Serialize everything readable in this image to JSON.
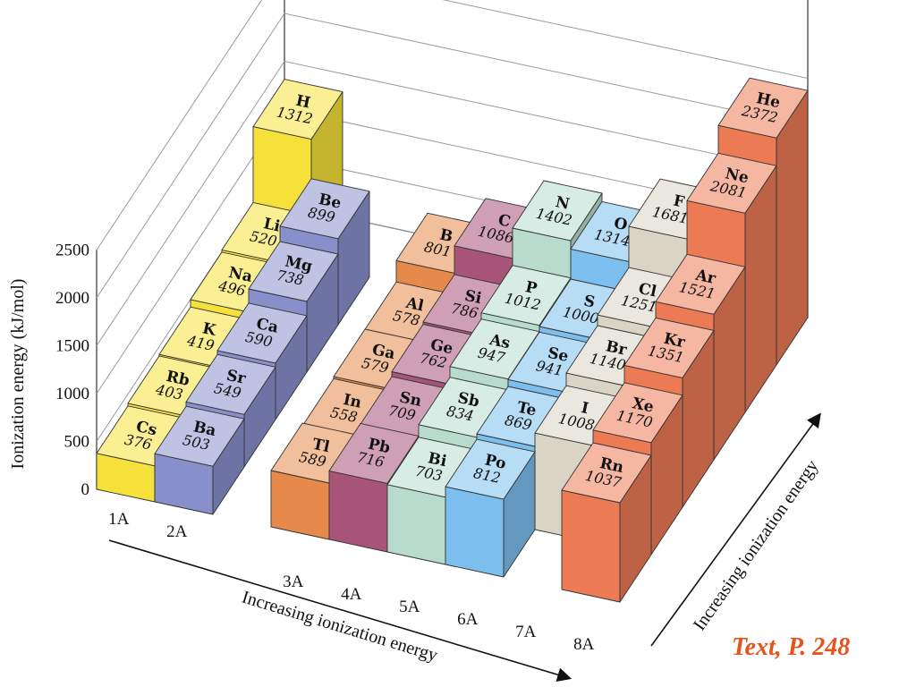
{
  "chart_data": {
    "type": "bar",
    "bar_style": "3d",
    "ylabel": "Ionization energy (kJ/mol)",
    "ylim": [
      0,
      2500
    ],
    "yticks": [
      0,
      500,
      1000,
      1500,
      2000,
      2500
    ],
    "xlabel": "Increasing ionization energy",
    "zlabel": "Increasing ionization energy",
    "groups": [
      {
        "label": "1A",
        "color": "#f5e13a",
        "elements": [
          {
            "symbol": "H",
            "value": 1312
          },
          {
            "symbol": "Li",
            "value": 520
          },
          {
            "symbol": "Na",
            "value": 496
          },
          {
            "symbol": "K",
            "value": 419
          },
          {
            "symbol": "Rb",
            "value": 403
          },
          {
            "symbol": "Cs",
            "value": 376
          }
        ]
      },
      {
        "label": "2A",
        "color": "#8890cc",
        "elements": [
          {
            "symbol": "Be",
            "value": 899
          },
          {
            "symbol": "Mg",
            "value": 738
          },
          {
            "symbol": "Ca",
            "value": 590
          },
          {
            "symbol": "Sr",
            "value": 549
          },
          {
            "symbol": "Ba",
            "value": 503
          }
        ]
      },
      {
        "label": "3A",
        "color": "#e58a4a",
        "elements": [
          {
            "symbol": "B",
            "value": 801
          },
          {
            "symbol": "Al",
            "value": 578
          },
          {
            "symbol": "Ga",
            "value": 579
          },
          {
            "symbol": "In",
            "value": 558
          },
          {
            "symbol": "Tl",
            "value": 589
          }
        ]
      },
      {
        "label": "4A",
        "color": "#a85378",
        "elements": [
          {
            "symbol": "C",
            "value": 1086
          },
          {
            "symbol": "Si",
            "value": 786
          },
          {
            "symbol": "Ge",
            "value": 762
          },
          {
            "symbol": "Sn",
            "value": 709
          },
          {
            "symbol": "Pb",
            "value": 716
          }
        ]
      },
      {
        "label": "5A",
        "color": "#b7dccd",
        "elements": [
          {
            "symbol": "N",
            "value": 1402
          },
          {
            "symbol": "P",
            "value": 1012
          },
          {
            "symbol": "As",
            "value": 947
          },
          {
            "symbol": "Sb",
            "value": 834
          },
          {
            "symbol": "Bi",
            "value": 703
          }
        ]
      },
      {
        "label": "6A",
        "color": "#7cbfee",
        "elements": [
          {
            "symbol": "O",
            "value": 1314
          },
          {
            "symbol": "S",
            "value": 1000
          },
          {
            "symbol": "Se",
            "value": 941
          },
          {
            "symbol": "Te",
            "value": 869
          },
          {
            "symbol": "Po",
            "value": 812
          }
        ]
      },
      {
        "label": "7A",
        "color": "#d9d4c4",
        "elements": [
          {
            "symbol": "F",
            "value": 1681
          },
          {
            "symbol": "Cl",
            "value": 1251
          },
          {
            "symbol": "Br",
            "value": 1140
          },
          {
            "symbol": "I",
            "value": 1008
          }
        ]
      },
      {
        "label": "8A",
        "color": "#ec7a55",
        "elements": [
          {
            "symbol": "He",
            "value": 2372
          },
          {
            "symbol": "Ne",
            "value": 2081
          },
          {
            "symbol": "Ar",
            "value": 1521
          },
          {
            "symbol": "Kr",
            "value": 1351
          },
          {
            "symbol": "Xe",
            "value": 1170
          },
          {
            "symbol": "Rn",
            "value": 1037
          }
        ]
      }
    ]
  },
  "credit": {
    "text": "Text, P. 248",
    "color": "#e8531c"
  }
}
